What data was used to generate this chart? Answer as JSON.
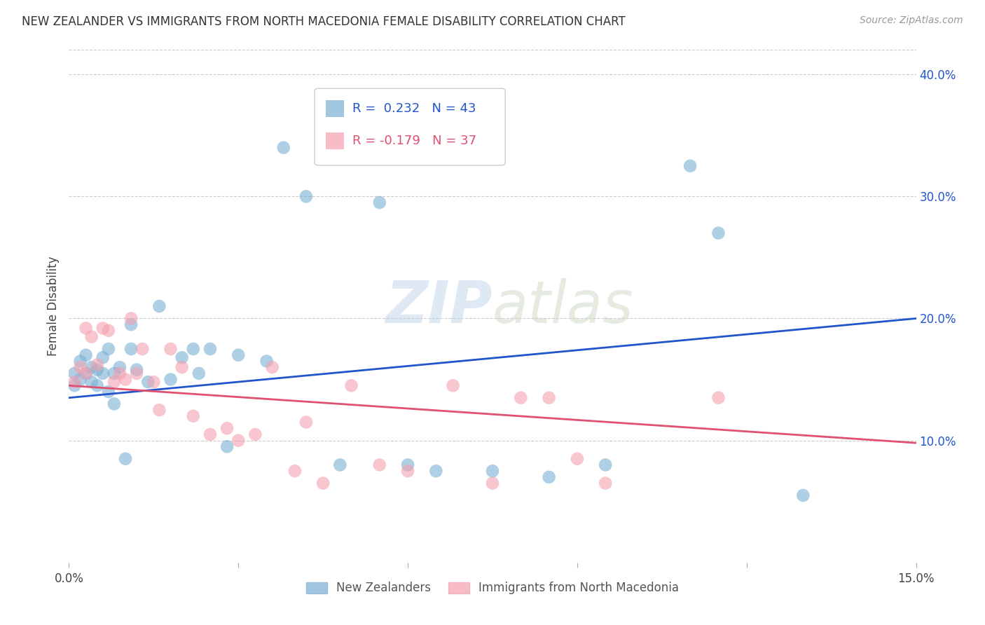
{
  "title": "NEW ZEALANDER VS IMMIGRANTS FROM NORTH MACEDONIA FEMALE DISABILITY CORRELATION CHART",
  "source": "Source: ZipAtlas.com",
  "ylabel": "Female Disability",
  "xlim": [
    0.0,
    0.15
  ],
  "ylim": [
    0.0,
    0.42
  ],
  "xticks": [
    0.0,
    0.03,
    0.06,
    0.09,
    0.12,
    0.15
  ],
  "xtick_labels": [
    "0.0%",
    "",
    "",
    "",
    "",
    "15.0%"
  ],
  "yticks_right": [
    0.1,
    0.2,
    0.3,
    0.4
  ],
  "ytick_right_labels": [
    "10.0%",
    "20.0%",
    "30.0%",
    "40.0%"
  ],
  "grid_color": "#cccccc",
  "background_color": "#ffffff",
  "nz_color": "#7bafd4",
  "nm_color": "#f4a0b0",
  "nz_line_color": "#2255cc",
  "nm_line_color": "#e05070",
  "nz_R": 0.232,
  "nz_N": 43,
  "nm_R": -0.179,
  "nm_N": 37,
  "legend_R_color": "#2255cc",
  "legend_Rneg_color": "#e05070",
  "watermark_zip": "ZIP",
  "watermark_atlas": "atlas",
  "nz_scatter_x": [
    0.001,
    0.001,
    0.002,
    0.002,
    0.003,
    0.003,
    0.004,
    0.004,
    0.005,
    0.005,
    0.006,
    0.006,
    0.007,
    0.007,
    0.008,
    0.008,
    0.009,
    0.01,
    0.011,
    0.011,
    0.012,
    0.014,
    0.016,
    0.018,
    0.02,
    0.022,
    0.023,
    0.025,
    0.028,
    0.03,
    0.035,
    0.038,
    0.042,
    0.048,
    0.055,
    0.06,
    0.065,
    0.075,
    0.085,
    0.095,
    0.11,
    0.115,
    0.13
  ],
  "nz_scatter_y": [
    0.145,
    0.155,
    0.15,
    0.165,
    0.155,
    0.17,
    0.148,
    0.16,
    0.145,
    0.158,
    0.155,
    0.168,
    0.175,
    0.14,
    0.13,
    0.155,
    0.16,
    0.085,
    0.175,
    0.195,
    0.158,
    0.148,
    0.21,
    0.15,
    0.168,
    0.175,
    0.155,
    0.175,
    0.095,
    0.17,
    0.165,
    0.34,
    0.3,
    0.08,
    0.295,
    0.08,
    0.075,
    0.075,
    0.07,
    0.08,
    0.325,
    0.27,
    0.055
  ],
  "nm_scatter_x": [
    0.001,
    0.002,
    0.003,
    0.003,
    0.004,
    0.005,
    0.006,
    0.007,
    0.008,
    0.009,
    0.01,
    0.011,
    0.012,
    0.013,
    0.015,
    0.016,
    0.018,
    0.02,
    0.022,
    0.025,
    0.028,
    0.03,
    0.033,
    0.036,
    0.04,
    0.042,
    0.045,
    0.05,
    0.055,
    0.06,
    0.068,
    0.075,
    0.08,
    0.085,
    0.09,
    0.095,
    0.115
  ],
  "nm_scatter_y": [
    0.148,
    0.16,
    0.155,
    0.192,
    0.185,
    0.162,
    0.192,
    0.19,
    0.148,
    0.155,
    0.15,
    0.2,
    0.155,
    0.175,
    0.148,
    0.125,
    0.175,
    0.16,
    0.12,
    0.105,
    0.11,
    0.1,
    0.105,
    0.16,
    0.075,
    0.115,
    0.065,
    0.145,
    0.08,
    0.075,
    0.145,
    0.065,
    0.135,
    0.135,
    0.085,
    0.065,
    0.135
  ]
}
